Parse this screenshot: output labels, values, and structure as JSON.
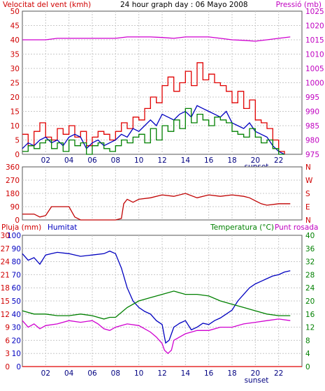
{
  "chart_data": [
    {
      "type": "line",
      "title": "24 hour graph day : 06 Mayo 2008",
      "left_axis_label": "Velocitat del vent (kmh)",
      "right_axis_label": "Pressió (mb)",
      "ylim_left": [
        0,
        50
      ],
      "yticks_left": [
        "0",
        "5",
        "10",
        "15",
        "20",
        "25",
        "30",
        "35",
        "40",
        "45",
        "50"
      ],
      "ylim_right": [
        975,
        1025
      ],
      "yticks_right": [
        "975",
        "980",
        "985",
        "990",
        "995",
        "1000",
        "1005",
        "1010",
        "1015",
        "1020",
        "1025"
      ],
      "xlim": [
        0,
        24
      ],
      "xticks": [
        "02",
        "04",
        "06",
        "08",
        "10",
        "12",
        "14",
        "16",
        "18",
        "20",
        "22"
      ],
      "annotation": "sunset",
      "grid": true,
      "series": [
        {
          "key": "gust",
          "color": "#e00000",
          "axis": "left",
          "step": true,
          "x": [
            0,
            0.5,
            1,
            1.5,
            2,
            2.5,
            3,
            3.5,
            4,
            4.5,
            5,
            5.5,
            6,
            6.5,
            7,
            7.5,
            8,
            8.5,
            9,
            9.5,
            10,
            10.5,
            11,
            11.5,
            12,
            12.5,
            13,
            13.5,
            14,
            14.5,
            15,
            15.5,
            16,
            16.5,
            17,
            17.5,
            18,
            18.5,
            19,
            19.5,
            20,
            20.5,
            21,
            21.5,
            22,
            22.5
          ],
          "values": [
            7,
            3,
            8,
            11,
            6,
            5,
            9,
            7,
            10,
            6,
            8,
            3,
            6,
            8,
            7,
            5,
            8,
            11,
            9,
            13,
            12,
            16,
            20,
            18,
            24,
            27,
            22,
            25,
            29,
            24,
            32,
            26,
            28,
            25,
            24,
            22,
            18,
            22,
            16,
            19,
            12,
            11,
            9,
            5,
            1,
            0
          ]
        },
        {
          "key": "wind",
          "color": "#0000c0",
          "axis": "left",
          "x": [
            0,
            0.5,
            1,
            1.5,
            2,
            2.5,
            3,
            3.5,
            4,
            4.5,
            5,
            5.5,
            6,
            6.5,
            7,
            7.5,
            8,
            8.5,
            9,
            9.5,
            10,
            10.5,
            11,
            11.5,
            12,
            12.5,
            13,
            13.5,
            14,
            14.5,
            15,
            15.5,
            16,
            16.5,
            17,
            17.5,
            18,
            18.5,
            19,
            19.5,
            20,
            20.5,
            21,
            21.5,
            22,
            22.5
          ],
          "values": [
            2,
            4,
            3,
            5,
            6,
            4,
            5,
            3,
            6,
            7,
            6,
            2,
            4,
            5,
            3,
            4,
            5,
            7,
            6,
            9,
            8,
            10,
            12,
            10,
            14,
            13,
            12,
            14,
            15,
            13,
            17,
            16,
            15,
            14,
            13,
            15,
            11,
            10,
            9,
            11,
            8,
            7,
            6,
            3,
            1,
            0
          ]
        },
        {
          "key": "average",
          "color": "#008000",
          "axis": "left",
          "step": true,
          "x": [
            0,
            0.5,
            1,
            1.5,
            2,
            2.5,
            3,
            3.5,
            4,
            4.5,
            5,
            5.5,
            6,
            6.5,
            7,
            7.5,
            8,
            8.5,
            9,
            9.5,
            10,
            10.5,
            11,
            11.5,
            12,
            12.5,
            13,
            13.5,
            14,
            14.5,
            15,
            15.5,
            16,
            16.5,
            17,
            17.5,
            18,
            18.5,
            19,
            19.5,
            20,
            20.5,
            21,
            21.5,
            22,
            22.5
          ],
          "values": [
            1,
            3,
            2,
            4,
            5,
            2,
            4,
            1,
            5,
            3,
            4,
            0,
            3,
            4,
            2,
            1,
            3,
            5,
            4,
            6,
            7,
            4,
            9,
            5,
            10,
            8,
            12,
            9,
            16,
            11,
            14,
            12,
            10,
            13,
            12,
            11,
            8,
            7,
            6,
            9,
            6,
            4,
            5,
            2,
            0,
            0
          ]
        },
        {
          "key": "pressure",
          "color": "#d000d0",
          "axis": "right",
          "x": [
            0,
            1,
            2,
            3,
            4,
            5,
            6,
            7,
            8,
            9,
            10,
            11,
            12,
            13,
            14,
            15,
            16,
            17,
            18,
            19,
            20,
            21,
            22,
            23
          ],
          "values": [
            1015,
            1015,
            1015,
            1015.5,
            1015.5,
            1015.5,
            1015.5,
            1015.5,
            1015.5,
            1016,
            1016,
            1016,
            1015.8,
            1015.5,
            1016,
            1016,
            1016,
            1015.5,
            1015,
            1014.8,
            1014.5,
            1015,
            1015.5,
            1016
          ]
        }
      ]
    },
    {
      "type": "line",
      "title": "",
      "ylim": [
        0,
        360
      ],
      "yticks": [
        "0",
        "90",
        "180",
        "270",
        "360"
      ],
      "yticks_right": [
        "N",
        "E",
        "S",
        "W",
        "N"
      ],
      "xlim": [
        0,
        24
      ],
      "grid": true,
      "series": [
        {
          "key": "direction",
          "color": "#c00000",
          "x": [
            0,
            1,
            1.5,
            2,
            2.5,
            3,
            3.5,
            4,
            4.5,
            5,
            5.5,
            6,
            7,
            8,
            8.5,
            8.7,
            9,
            9.5,
            10,
            11,
            12,
            13,
            14,
            15,
            16,
            17,
            18,
            19,
            19.5,
            20,
            20.5,
            21,
            22,
            23
          ],
          "values": [
            40,
            40,
            20,
            30,
            90,
            90,
            90,
            90,
            20,
            0,
            0,
            0,
            0,
            0,
            10,
            110,
            140,
            120,
            140,
            150,
            170,
            160,
            180,
            150,
            170,
            160,
            170,
            160,
            150,
            130,
            110,
            100,
            110,
            110
          ]
        }
      ]
    },
    {
      "type": "line",
      "left_axis_label_1": "Pluja (mm)",
      "left_axis_label_2": "Humitat",
      "right_axis_label_1": "Temperatura (°C)",
      "right_axis_label_2": "Punt rosada",
      "ylim_rain": [
        0,
        30
      ],
      "yticks_rain": [
        "0",
        "3",
        "6",
        "9",
        "12",
        "15",
        "18",
        "21",
        "24",
        "27",
        "30"
      ],
      "ylim_humidity": [
        0,
        100
      ],
      "yticks_humidity": [
        "0",
        "10",
        "20",
        "30",
        "40",
        "50",
        "60",
        "70",
        "80",
        "90",
        "100"
      ],
      "ylim_temp": [
        0,
        40
      ],
      "yticks_temp": [
        "0",
        "4",
        "8",
        "12",
        "16",
        "20",
        "24",
        "28",
        "32",
        "36",
        "40"
      ],
      "xlim": [
        0,
        24
      ],
      "xticks": [
        "02",
        "04",
        "06",
        "08",
        "10",
        "12",
        "14",
        "16",
        "18",
        "20",
        "22"
      ],
      "annotation": "sunset",
      "grid": true,
      "series": [
        {
          "key": "humidity",
          "color": "#0000c0",
          "axis": "humidity",
          "x": [
            0,
            0.5,
            1,
            1.5,
            2,
            2.5,
            3,
            4,
            5,
            6,
            7,
            7.5,
            8,
            8.5,
            9,
            9.5,
            10,
            10.5,
            11,
            11.5,
            12,
            12.3,
            12.6,
            13,
            13.5,
            14,
            14.5,
            15,
            15.5,
            16,
            16.5,
            17,
            17.5,
            18,
            18.5,
            19,
            19.5,
            20,
            20.5,
            21,
            21.5,
            22,
            22.5,
            23
          ],
          "values": [
            86,
            81,
            83,
            78,
            85,
            86,
            87,
            86,
            84,
            85,
            86,
            88,
            86,
            75,
            60,
            50,
            45,
            42,
            40,
            35,
            32,
            18,
            20,
            30,
            33,
            35,
            28,
            30,
            33,
            32,
            35,
            37,
            40,
            43,
            50,
            55,
            60,
            63,
            65,
            67,
            69,
            70,
            72,
            73
          ]
        },
        {
          "key": "temperature",
          "color": "#008000",
          "axis": "temp",
          "x": [
            0,
            1,
            2,
            3,
            4,
            5,
            6,
            7,
            7.5,
            8,
            9,
            10,
            11,
            12,
            13,
            14,
            15,
            16,
            17,
            18,
            19,
            20,
            21,
            22,
            23
          ],
          "values": [
            17,
            16,
            16,
            15.5,
            15.5,
            16,
            15.5,
            14.5,
            15,
            15,
            18,
            20,
            21,
            22,
            23,
            22,
            22,
            21.5,
            20,
            19,
            18,
            17,
            16,
            15.5,
            15.5
          ]
        },
        {
          "key": "dew_point",
          "color": "#d000d0",
          "axis": "temp",
          "x": [
            0,
            0.5,
            1,
            1.5,
            2,
            3,
            4,
            5,
            6,
            6.5,
            7,
            7.5,
            8,
            9,
            10,
            11,
            11.5,
            12,
            12.2,
            12.5,
            12.8,
            13,
            13.5,
            14,
            15,
            16,
            17,
            18,
            19,
            20,
            21,
            22,
            23
          ],
          "values": [
            14,
            12,
            13,
            11.5,
            12.5,
            13,
            14,
            13.5,
            14,
            13,
            11.5,
            11,
            12,
            13,
            12.5,
            10.5,
            9,
            7,
            5,
            4,
            5,
            8,
            9,
            10,
            11,
            11,
            12,
            12,
            13,
            13.5,
            14,
            14.5,
            14
          ]
        },
        {
          "key": "rain",
          "color": "#e00000",
          "axis": "rain",
          "x": [
            0,
            24
          ],
          "values": [
            0,
            0
          ]
        }
      ]
    }
  ]
}
